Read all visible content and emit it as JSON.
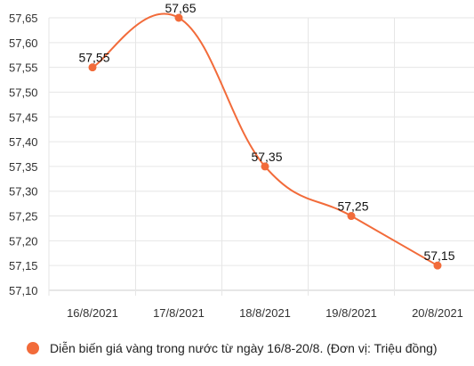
{
  "chart_data": {
    "type": "line",
    "categories": [
      "16/8/2021",
      "17/8/2021",
      "18/8/2021",
      "19/8/2021",
      "20/8/2021"
    ],
    "series": [
      {
        "name": "Diễn biến giá vàng trong nước từ ngày 16/8-20/8. (Đơn vị: Triệu đồng)",
        "values": [
          57.55,
          57.65,
          57.35,
          57.25,
          57.15
        ],
        "data_labels": [
          "57,55",
          "57,65",
          "57,35",
          "57,25",
          "57,15"
        ]
      }
    ],
    "y_ticks": [
      "57,10",
      "57,15",
      "57,20",
      "57,25",
      "57,30",
      "57,35",
      "57,40",
      "57,45",
      "57,50",
      "57,55",
      "57,60",
      "57,65"
    ],
    "ylim": [
      57.1,
      57.65
    ],
    "y_step": 0.05,
    "grid": true,
    "legend_position": "bottom",
    "colors": {
      "line": "#F26B3A",
      "grid": "#E6E6E6",
      "axis": "#CCCCCC"
    }
  }
}
